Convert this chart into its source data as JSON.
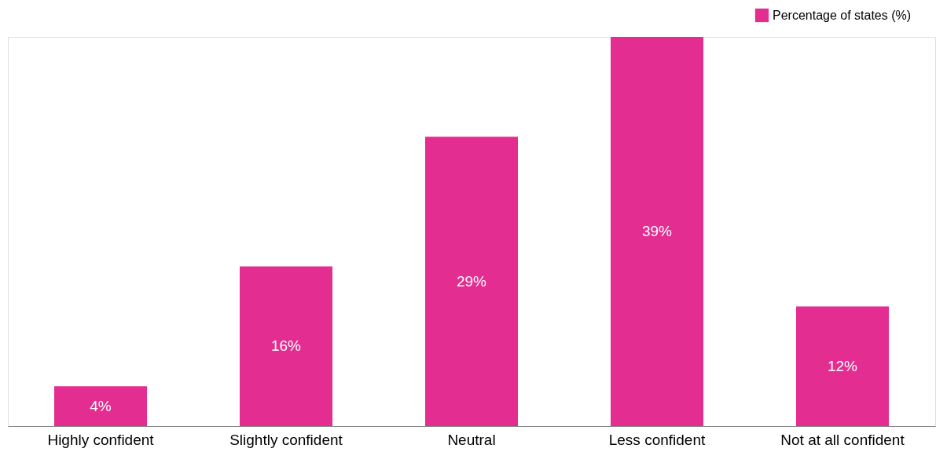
{
  "chart_data": {
    "type": "bar",
    "categories": [
      "Highly confident",
      "Slightly confident",
      "Neutral",
      "Less confident",
      "Not at all confident"
    ],
    "series": [
      {
        "name": "Percentage of states (%)",
        "color": "#e32d91",
        "values": [
          4,
          16,
          29,
          39,
          12
        ],
        "value_labels": [
          "4%",
          "16%",
          "29%",
          "39%",
          "12%"
        ]
      }
    ],
    "legend": "top right",
    "grid": false
  }
}
